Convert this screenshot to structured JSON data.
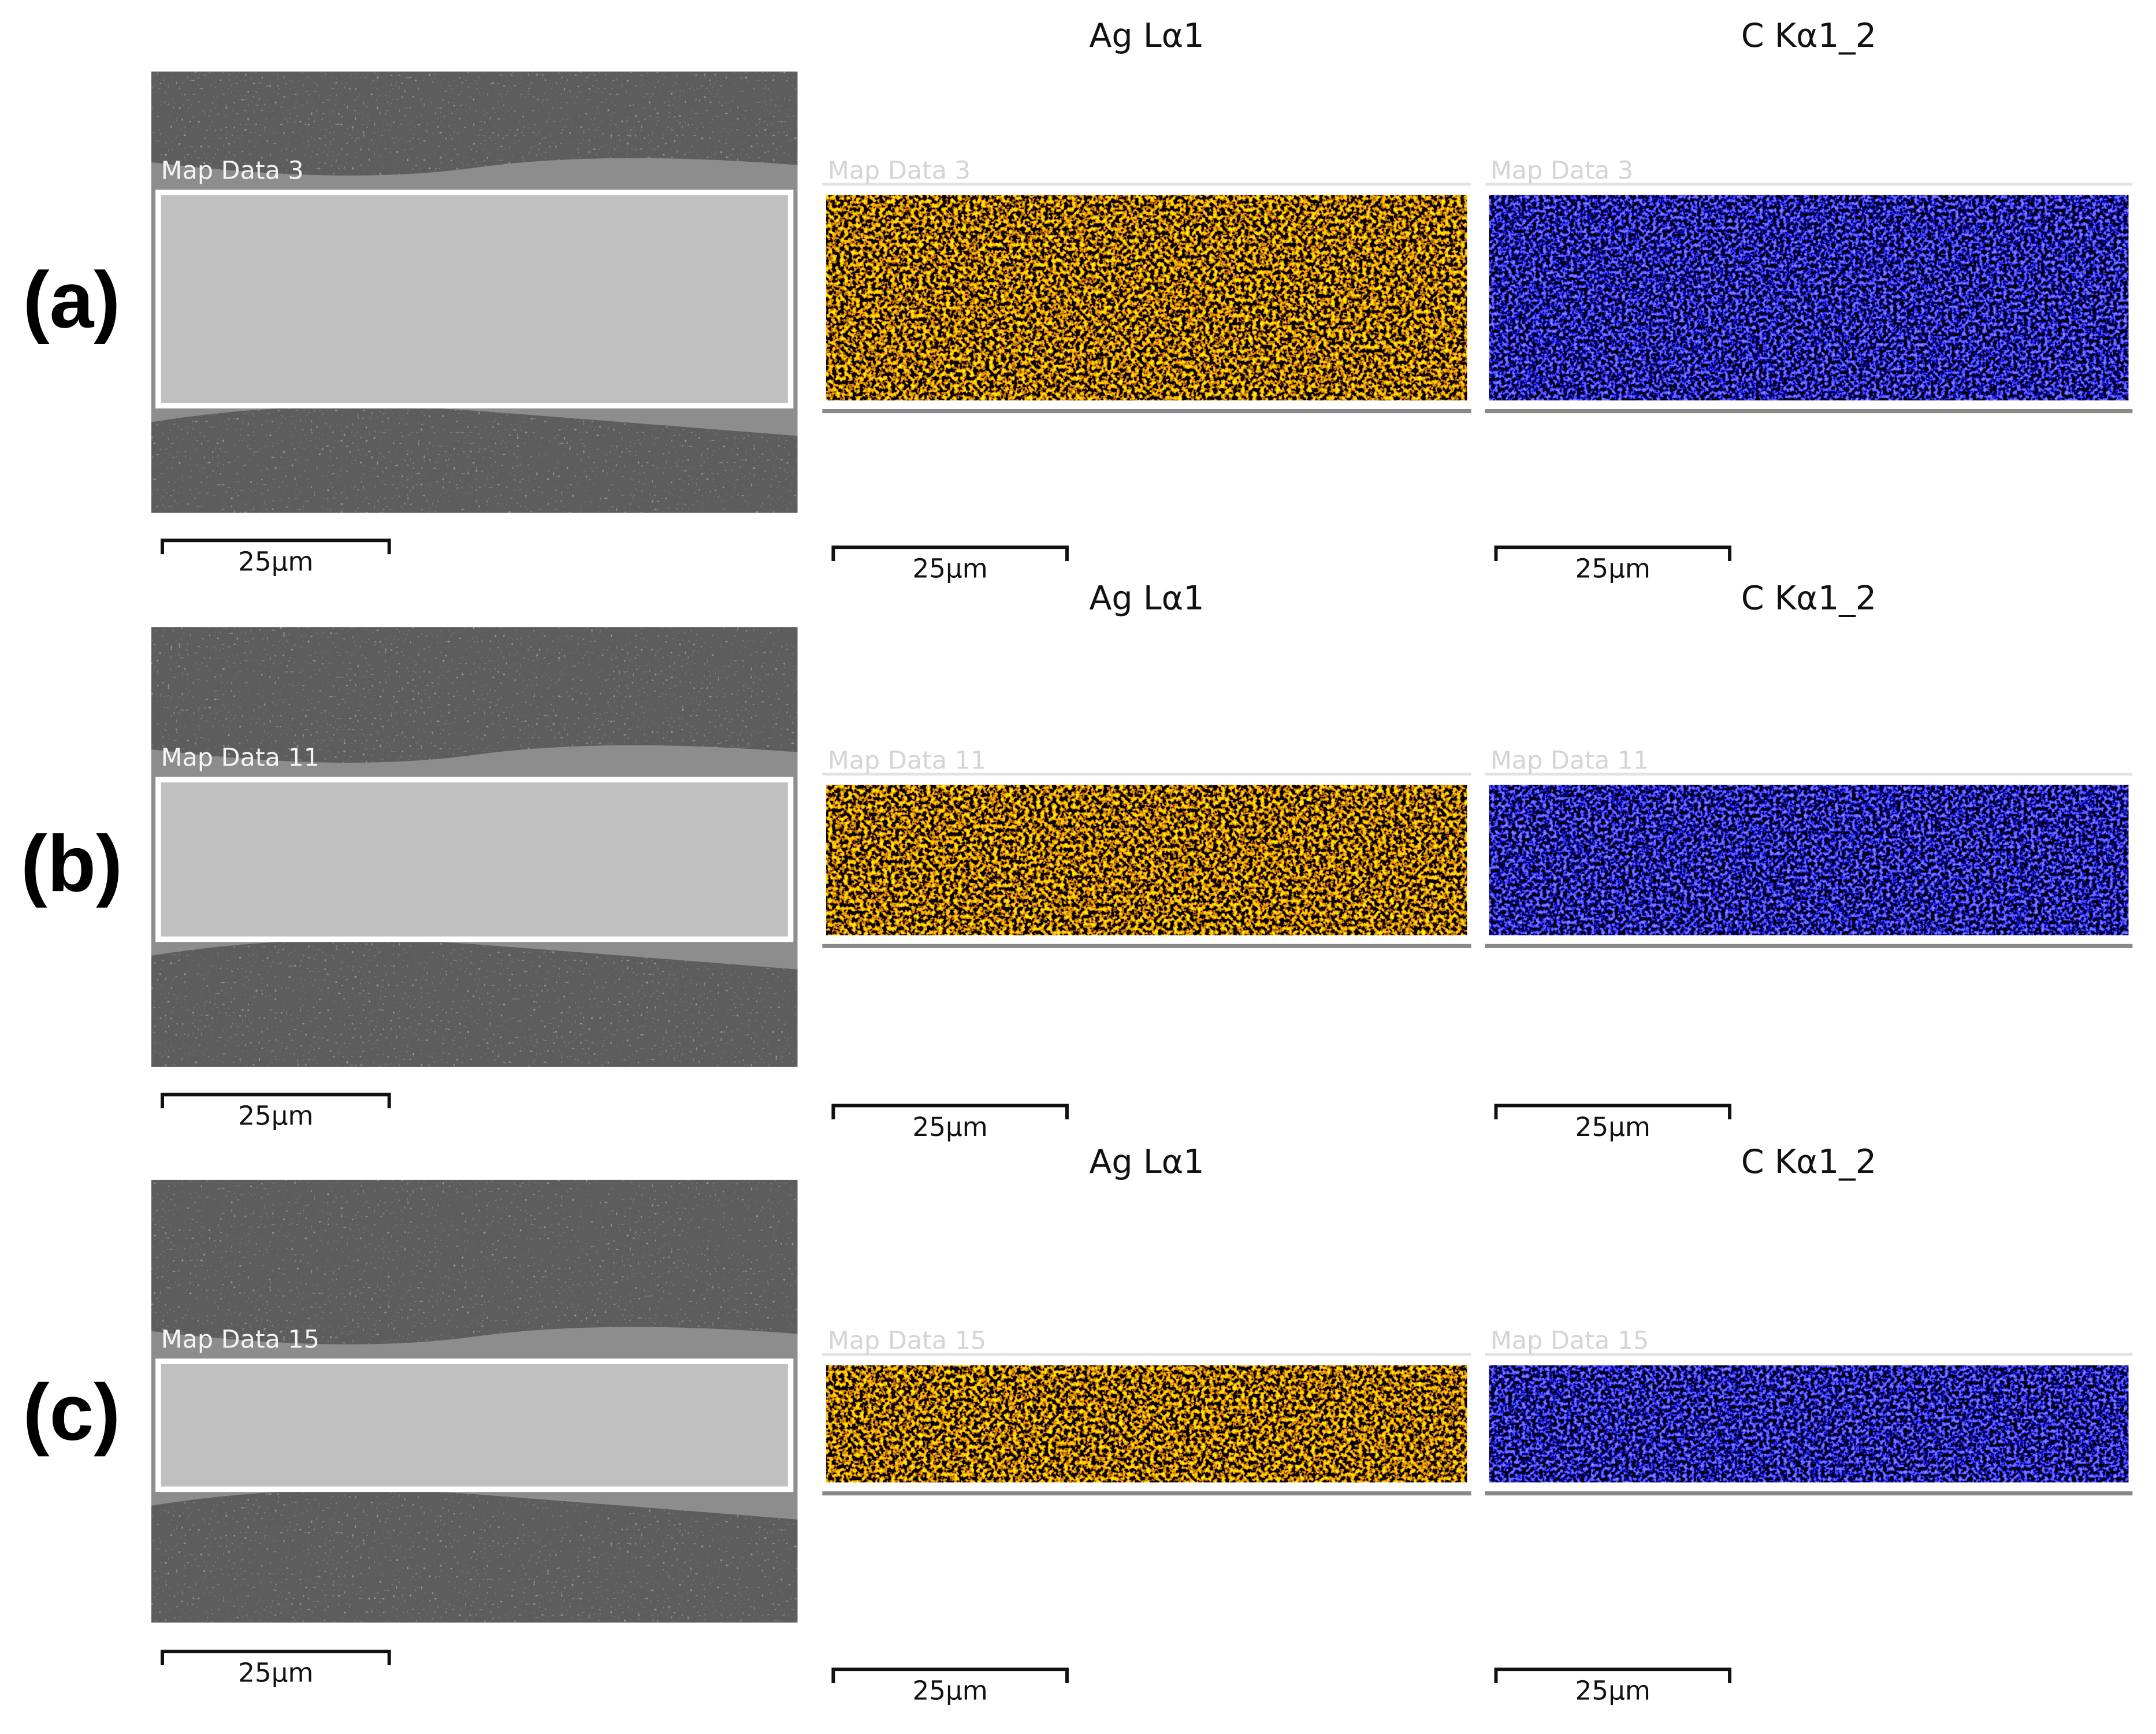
{
  "rows": [
    {
      "label": "(a)",
      "sem": {
        "map": "Map Data 3",
        "scale": "25µm"
      },
      "panels": [
        {
          "title": "Ag Lα1",
          "map": "Map Data 3",
          "scale": "25µm"
        },
        {
          "title": "C Kα1_2",
          "map": "Map Data 3",
          "scale": "25µm"
        }
      ]
    },
    {
      "label": "(b)",
      "sem": {
        "map": "Map Data 11",
        "scale": "25µm"
      },
      "panels": [
        {
          "title": "Ag Lα1",
          "map": "Map Data 11",
          "scale": "25µm"
        },
        {
          "title": "C Kα1_2",
          "map": "Map Data 11",
          "scale": "25µm"
        }
      ]
    },
    {
      "label": "(c)",
      "sem": {
        "map": "Map Data 15",
        "scale": "25µm"
      },
      "panels": [
        {
          "title": "Ag Lα1",
          "map": "Map Data 15",
          "scale": "25µm"
        },
        {
          "title": "C Kα1_2",
          "map": "Map Data 15",
          "scale": "25µm"
        }
      ]
    }
  ]
}
